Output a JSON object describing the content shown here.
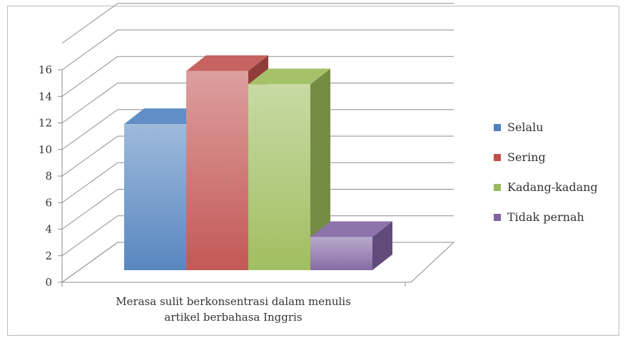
{
  "chart_data": {
    "type": "bar",
    "title": "",
    "xlabel": "",
    "ylabel": "",
    "categories": [
      "Merasa sulit berkonsentrasi dalam menulis artikel berbahasa Inggris"
    ],
    "category_lines": [
      "Merasa sulit berkonsentrasi dalam menulis",
      "artikel berbahasa Inggris"
    ],
    "ylim": [
      0,
      16
    ],
    "yticks": [
      "0",
      "2",
      "4",
      "6",
      "8",
      "10",
      "12",
      "14",
      "16"
    ],
    "grid": true,
    "legend_position": "right",
    "style": "3d-clustered-column",
    "series": [
      {
        "name": "Selalu",
        "values": [
          11
        ],
        "color": "#4f81bd"
      },
      {
        "name": "Sering",
        "values": [
          15
        ],
        "color": "#c0504d"
      },
      {
        "name": "Kadang-kadang",
        "values": [
          14
        ],
        "color": "#9bbb59"
      },
      {
        "name": "Tidak pernah",
        "values": [
          2.5
        ],
        "color": "#8064a2"
      }
    ]
  }
}
